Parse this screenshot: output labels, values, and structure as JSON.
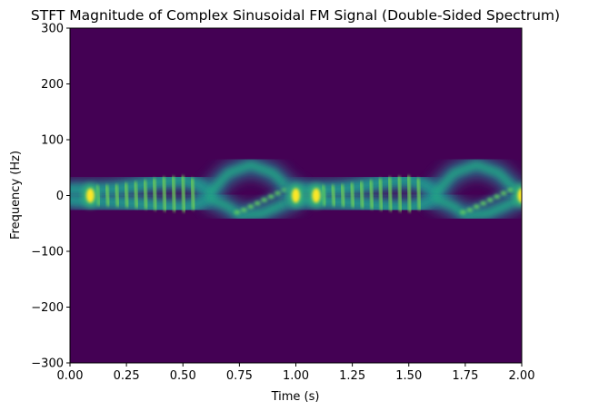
{
  "chart_data": {
    "type": "heatmap",
    "title": "STFT Magnitude of Complex Sinusoidal FM Signal (Double-Sided Spectrum)",
    "xlabel": "Time (s)",
    "ylabel": "Frequency (Hz)",
    "xlim": [
      0,
      2
    ],
    "ylim": [
      -300,
      300
    ],
    "x_ticks": [
      0,
      0.25,
      0.5,
      0.75,
      1.0,
      1.25,
      1.5,
      1.75,
      2.0
    ],
    "x_tick_labels": [
      "0.00",
      "0.25",
      "0.50",
      "0.75",
      "1.00",
      "1.25",
      "1.50",
      "1.75",
      "2.00"
    ],
    "y_ticks": [
      -300,
      -200,
      -100,
      0,
      100,
      200,
      300
    ],
    "y_tick_labels": [
      "−300",
      "−200",
      "−100",
      "0",
      "100",
      "200",
      "300"
    ],
    "colormap": "viridis",
    "background_color": "#440154",
    "grid": false,
    "signal": {
      "period_s": 1.0,
      "upper_lobe": [
        {
          "t": 0.0,
          "f": 10
        },
        {
          "t": 0.1,
          "f": 10
        },
        {
          "t": 0.2,
          "f": 12
        },
        {
          "t": 0.3,
          "f": 18
        },
        {
          "t": 0.4,
          "f": 25
        },
        {
          "t": 0.5,
          "f": 28
        },
        {
          "t": 0.57,
          "f": 20
        },
        {
          "t": 0.62,
          "f": 5
        }
      ],
      "lower_lobe": [
        {
          "t": 0.0,
          "f": -8
        },
        {
          "t": 0.1,
          "f": -10
        },
        {
          "t": 0.2,
          "f": -12
        },
        {
          "t": 0.3,
          "f": -15
        },
        {
          "t": 0.4,
          "f": -20
        },
        {
          "t": 0.5,
          "f": -22
        },
        {
          "t": 0.57,
          "f": -15
        },
        {
          "t": 0.62,
          "f": -3
        }
      ],
      "upper_arc": [
        {
          "t": 0.62,
          "f": 5
        },
        {
          "t": 0.7,
          "f": 40
        },
        {
          "t": 0.8,
          "f": 55
        },
        {
          "t": 0.9,
          "f": 40
        },
        {
          "t": 0.96,
          "f": 15
        },
        {
          "t": 1.0,
          "f": 5
        }
      ],
      "lower_arc": [
        {
          "t": 0.62,
          "f": -5
        },
        {
          "t": 0.7,
          "f": -20
        },
        {
          "t": 0.75,
          "f": -35
        },
        {
          "t": 0.85,
          "f": -32
        },
        {
          "t": 0.92,
          "f": -20
        },
        {
          "t": 1.0,
          "f": -5
        }
      ],
      "diagonal_streak": [
        {
          "t": 0.75,
          "f": -30
        },
        {
          "t": 0.85,
          "f": -10
        },
        {
          "t": 0.95,
          "f": 10
        }
      ],
      "hotspots": [
        {
          "t": 0.09,
          "f": 0,
          "intensity": 1.0
        },
        {
          "t": 1.0,
          "f": 0,
          "intensity": 1.0
        },
        {
          "t": 1.09,
          "f": 0,
          "intensity": 1.0
        },
        {
          "t": 2.0,
          "f": 0,
          "intensity": 1.0
        }
      ]
    }
  }
}
